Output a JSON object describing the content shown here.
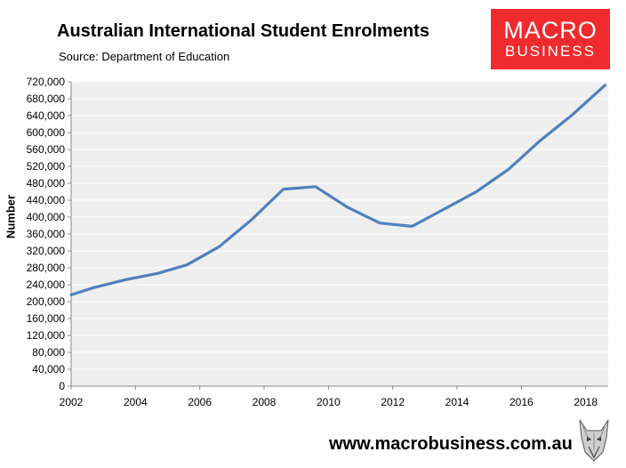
{
  "header": {
    "title": "Australian International Student Enrolments",
    "subtitle": "Source: Department of Education"
  },
  "logo": {
    "line1": "MACRO",
    "line2": "BUSINESS"
  },
  "footer": {
    "url": "www.macrobusiness.com.au",
    "emblem": "wolf-head-icon"
  },
  "colors": {
    "line": "#4f81bd",
    "plot_bg": "#efefef",
    "grid": "#ffffff",
    "logo_bg": "#ef2b2d"
  },
  "chart_data": {
    "type": "line",
    "title": "Australian International Student Enrolments",
    "subtitle": "Source: Department of Education",
    "xlabel": "",
    "ylabel": "Number",
    "xlim": [
      2002,
      2018.7
    ],
    "ylim": [
      0,
      720000
    ],
    "x_ticks": [
      2002,
      2004,
      2006,
      2008,
      2010,
      2012,
      2014,
      2016,
      2018
    ],
    "x_tick_labels": [
      "2002",
      "2004",
      "2006",
      "2008",
      "2010",
      "2012",
      "2014",
      "2016",
      "2018"
    ],
    "y_ticks": [
      0,
      40000,
      80000,
      120000,
      160000,
      200000,
      240000,
      280000,
      320000,
      360000,
      400000,
      440000,
      480000,
      520000,
      560000,
      600000,
      640000,
      680000,
      720000
    ],
    "y_tick_labels": [
      "0",
      "40,000",
      "80,000",
      "120,000",
      "160,000",
      "200,000",
      "240,000",
      "280,000",
      "320,000",
      "360,000",
      "400,000",
      "440,000",
      "480,000",
      "520,000",
      "560,000",
      "600,000",
      "640,000",
      "680,000",
      "720,000"
    ],
    "grid": true,
    "series": [
      {
        "x": [
          2002.0,
          2002.7,
          2003.7,
          2004.7,
          2005.6,
          2006.6,
          2007.6,
          2008.6,
          2009.6,
          2010.6,
          2011.6,
          2012.6,
          2013.6,
          2014.6,
          2015.6,
          2016.6,
          2017.6,
          2018.6
        ],
        "values": [
          216000,
          233000,
          252000,
          267000,
          287000,
          330000,
          393000,
          466000,
          472000,
          423000,
          386000,
          378000,
          419000,
          460000,
          513000,
          582000,
          643000,
          712000
        ]
      }
    ]
  }
}
